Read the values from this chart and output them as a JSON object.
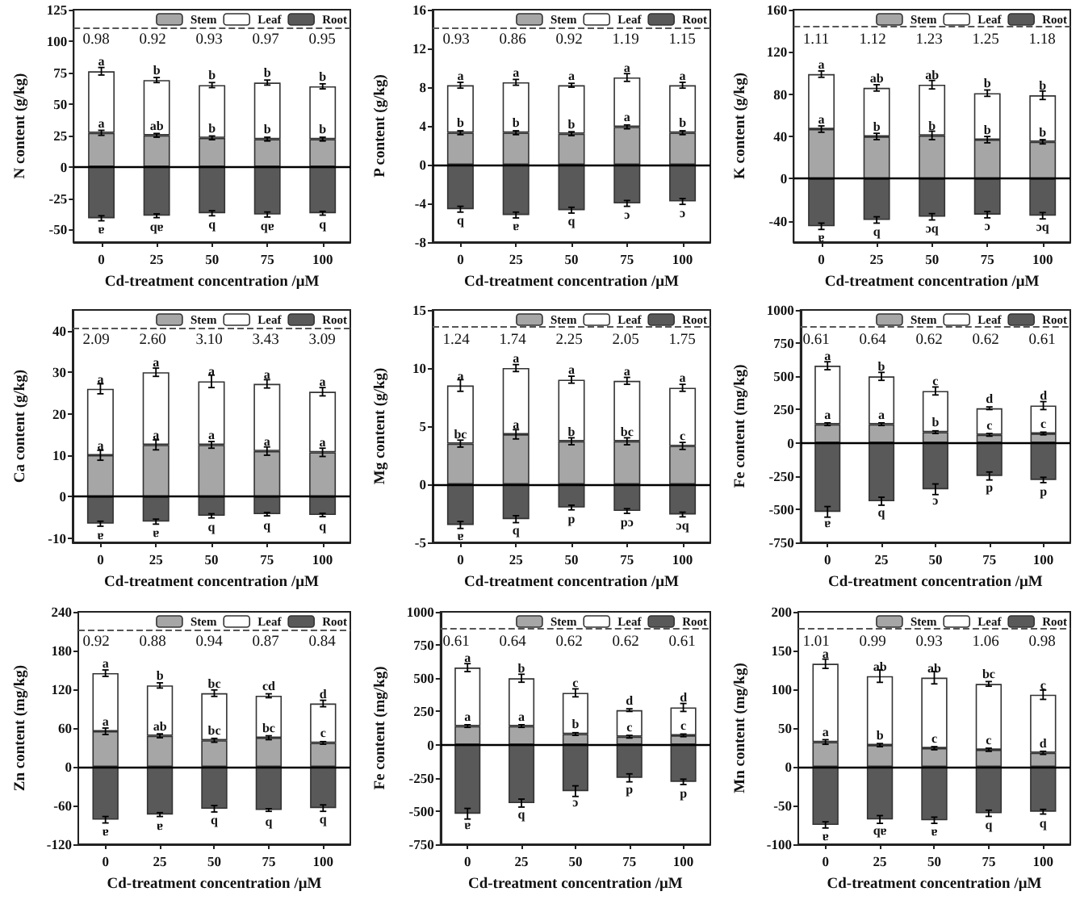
{
  "chart_data": [
    {
      "type": "bar",
      "stacked": true,
      "xlabel": "Cd-treatment concentration /μM",
      "ylabel": "N content (g/kg)",
      "categories": [
        "0",
        "25",
        "50",
        "75",
        "100"
      ],
      "ylim": [
        -60,
        125
      ],
      "yticks": [
        -50,
        -25,
        0,
        25,
        50,
        75,
        100,
        125
      ],
      "legend": "top right",
      "series": [
        {
          "name": "Stem",
          "color": "#a6a6a6",
          "values": [
            27,
            25,
            23,
            22,
            22
          ],
          "errors": [
            2,
            1.5,
            1.5,
            1.5,
            1.5
          ]
        },
        {
          "name": "Leaf",
          "color": "#ffffff",
          "values": [
            49,
            44,
            42,
            45,
            42
          ],
          "errors": [
            3,
            2,
            2,
            2,
            2
          ]
        },
        {
          "name": "Root",
          "color": "#595959",
          "values": [
            -41,
            -39,
            -37,
            -38,
            -37
          ],
          "errors": [
            2,
            1.5,
            2,
            2,
            1.5
          ]
        }
      ],
      "ref_lines": [
        {
          "axis": "y",
          "value": 111,
          "line_style": "dashed",
          "color": "#555555"
        },
        {
          "axis": "y",
          "value": 0,
          "line_style": "solid",
          "color": "#000000"
        }
      ],
      "annotations": [
        "0.98",
        "0.92",
        "0.93",
        "0.97",
        "0.95",
        {
          "text": "a",
          "x": "0",
          "y": 76
        },
        {
          "text": "b",
          "x": "25",
          "y": 69
        },
        {
          "text": "b",
          "x": "50",
          "y": 65
        },
        {
          "text": "b",
          "x": "75",
          "y": 67
        },
        {
          "text": "b",
          "x": "100",
          "y": 64
        },
        {
          "text": "a",
          "x": "0",
          "y": 27
        },
        {
          "text": "ab",
          "x": "25",
          "y": 25
        },
        {
          "text": "b",
          "x": "50",
          "y": 23
        },
        {
          "text": "b",
          "x": "75",
          "y": 22
        },
        {
          "text": "b",
          "x": "100",
          "y": 22
        },
        {
          "text": "ɐ",
          "x": "0",
          "y": -41
        },
        {
          "text": "qɐ",
          "x": "25",
          "y": -39
        },
        {
          "text": "q",
          "x": "50",
          "y": -37
        },
        {
          "text": "qɐ",
          "x": "75",
          "y": -38
        },
        {
          "text": "q",
          "x": "100",
          "y": -37
        }
      ]
    },
    {
      "type": "bar",
      "stacked": true,
      "xlabel": "Cd-treatment concentration /μM",
      "ylabel": "P content (g/kg)",
      "categories": [
        "0",
        "25",
        "50",
        "75",
        "100"
      ],
      "ylim": [
        -8,
        16
      ],
      "yticks": [
        -8,
        -4,
        0,
        4,
        8,
        12,
        16
      ],
      "legend": "top right",
      "series": [
        {
          "name": "Stem",
          "color": "#a6a6a6",
          "values": [
            3.3,
            3.3,
            3.2,
            3.9,
            3.3
          ],
          "errors": [
            0.2,
            0.2,
            0.2,
            0.2,
            0.2
          ]
        },
        {
          "name": "Leaf",
          "color": "#ffffff",
          "values": [
            4.9,
            5.2,
            5.0,
            5.1,
            4.9
          ],
          "errors": [
            0.3,
            0.3,
            0.2,
            0.4,
            0.3
          ]
        },
        {
          "name": "Root",
          "color": "#595959",
          "values": [
            -4.6,
            -5.2,
            -4.7,
            -4.0,
            -3.8
          ],
          "errors": [
            0.3,
            0.3,
            0.3,
            0.3,
            0.3
          ]
        }
      ],
      "ref_lines": [
        {
          "axis": "y",
          "value": 14.2,
          "line_style": "dashed",
          "color": "#555555"
        },
        {
          "axis": "y",
          "value": 0,
          "line_style": "solid",
          "color": "#000000"
        }
      ],
      "annotations": [
        "0.93",
        "0.86",
        "0.92",
        "1.19",
        "1.15",
        {
          "text": "a",
          "x": "0",
          "y": 8.2
        },
        {
          "text": "a",
          "x": "25",
          "y": 8.5
        },
        {
          "text": "a",
          "x": "50",
          "y": 8.2
        },
        {
          "text": "a",
          "x": "75",
          "y": 9.0
        },
        {
          "text": "a",
          "x": "100",
          "y": 8.2
        },
        {
          "text": "b",
          "x": "0",
          "y": 3.3
        },
        {
          "text": "b",
          "x": "25",
          "y": 3.3
        },
        {
          "text": "b",
          "x": "50",
          "y": 3.2
        },
        {
          "text": "a",
          "x": "75",
          "y": 3.9
        },
        {
          "text": "b",
          "x": "100",
          "y": 3.3
        },
        {
          "text": "q",
          "x": "0",
          "y": -4.6
        },
        {
          "text": "ɐ",
          "x": "25",
          "y": -5.2
        },
        {
          "text": "q",
          "x": "50",
          "y": -4.7
        },
        {
          "text": "ɔ",
          "x": "75",
          "y": -4.0
        },
        {
          "text": "ɔ",
          "x": "100",
          "y": -3.8
        }
      ]
    },
    {
      "type": "bar",
      "stacked": true,
      "xlabel": "Cd-treatment concentration /μM",
      "ylabel": "K content (g/kg)",
      "categories": [
        "0",
        "25",
        "50",
        "75",
        "100"
      ],
      "ylim": [
        -60,
        160
      ],
      "yticks": [
        -40,
        0,
        40,
        80,
        120,
        160
      ],
      "legend": "top right",
      "series": [
        {
          "name": "Stem",
          "color": "#a6a6a6",
          "values": [
            47,
            40,
            41,
            37,
            35
          ],
          "errors": [
            3,
            3,
            4,
            3,
            2
          ]
        },
        {
          "name": "Leaf",
          "color": "#ffffff",
          "values": [
            52,
            46,
            48,
            44,
            44
          ],
          "errors": [
            3,
            3,
            4,
            3,
            4
          ]
        },
        {
          "name": "Root",
          "color": "#595959",
          "values": [
            -45,
            -39,
            -36,
            -34,
            -35
          ],
          "errors": [
            3,
            3,
            3,
            3,
            3
          ]
        }
      ],
      "ref_lines": [
        {
          "axis": "y",
          "value": 145,
          "line_style": "dashed",
          "color": "#555555"
        },
        {
          "axis": "y",
          "value": 0,
          "line_style": "solid",
          "color": "#000000"
        }
      ],
      "annotations": [
        "1.11",
        "1.12",
        "1.23",
        "1.25",
        "1.18",
        {
          "text": "a",
          "x": "0",
          "y": 99
        },
        {
          "text": "ab",
          "x": "25",
          "y": 86
        },
        {
          "text": "ab",
          "x": "50",
          "y": 89
        },
        {
          "text": "b",
          "x": "75",
          "y": 81
        },
        {
          "text": "b",
          "x": "100",
          "y": 79
        },
        {
          "text": "a",
          "x": "0",
          "y": 47
        },
        {
          "text": "b",
          "x": "25",
          "y": 40
        },
        {
          "text": "b",
          "x": "50",
          "y": 41
        },
        {
          "text": "b",
          "x": "75",
          "y": 37
        },
        {
          "text": "b",
          "x": "100",
          "y": 35
        },
        {
          "text": "ɐ",
          "x": "0",
          "y": -45
        },
        {
          "text": "q",
          "x": "25",
          "y": -39
        },
        {
          "text": "ɔq",
          "x": "50",
          "y": -36
        },
        {
          "text": "ɔ",
          "x": "75",
          "y": -34
        },
        {
          "text": "ɔq",
          "x": "100",
          "y": -35
        }
      ]
    },
    {
      "type": "bar",
      "stacked": true,
      "xlabel": "Cd-treatment concentration /μM",
      "ylabel": "Ca content (g/kg)",
      "categories": [
        "0",
        "25",
        "50",
        "75",
        "100"
      ],
      "ylim": [
        -11,
        45
      ],
      "yticks": [
        -10,
        0,
        10,
        20,
        30,
        40
      ],
      "legend": "top right",
      "series": [
        {
          "name": "Stem",
          "color": "#a6a6a6",
          "values": [
            10,
            12.5,
            12.5,
            11,
            10.7
          ],
          "errors": [
            1.2,
            1.2,
            0.8,
            1,
            1
          ]
        },
        {
          "name": "Leaf",
          "color": "#ffffff",
          "values": [
            16,
            17.5,
            15.3,
            16.2,
            14.6
          ],
          "errors": [
            1.2,
            1,
            1.5,
            1,
            1
          ]
        },
        {
          "name": "Root",
          "color": "#595959",
          "values": [
            -6.5,
            -6,
            -4.6,
            -4.2,
            -4.4
          ],
          "errors": [
            0.6,
            0.6,
            0.5,
            0.4,
            0.4
          ]
        }
      ],
      "ref_lines": [
        {
          "axis": "y",
          "value": 40.5,
          "line_style": "dashed",
          "color": "#555555"
        },
        {
          "axis": "y",
          "value": 0,
          "line_style": "solid",
          "color": "#000000"
        }
      ],
      "annotations": [
        "2.09",
        "2.60",
        "3.10",
        "3.43",
        "3.09",
        {
          "text": "a",
          "x": "0",
          "y": 26
        },
        {
          "text": "a",
          "x": "25",
          "y": 30
        },
        {
          "text": "a",
          "x": "50",
          "y": 27.8
        },
        {
          "text": "a",
          "x": "75",
          "y": 27.2
        },
        {
          "text": "a",
          "x": "100",
          "y": 25.3
        },
        {
          "text": "a",
          "x": "0",
          "y": 10
        },
        {
          "text": "a",
          "x": "25",
          "y": 12.5
        },
        {
          "text": "a",
          "x": "50",
          "y": 12.5
        },
        {
          "text": "a",
          "x": "75",
          "y": 11
        },
        {
          "text": "a",
          "x": "100",
          "y": 10.7
        },
        {
          "text": "ɐ",
          "x": "0",
          "y": -6.5
        },
        {
          "text": "ɐ",
          "x": "25",
          "y": -6
        },
        {
          "text": "q",
          "x": "50",
          "y": -4.6
        },
        {
          "text": "q",
          "x": "75",
          "y": -4.2
        },
        {
          "text": "q",
          "x": "100",
          "y": -4.4
        }
      ]
    },
    {
      "type": "bar",
      "stacked": true,
      "xlabel": "Cd-treatment concentration /μM",
      "ylabel": "Mg content (g/kg)",
      "categories": [
        "0",
        "25",
        "50",
        "75",
        "100"
      ],
      "ylim": [
        -5,
        15
      ],
      "yticks": [
        -5,
        0,
        5,
        10,
        15
      ],
      "legend": "top right",
      "series": [
        {
          "name": "Stem",
          "color": "#a6a6a6",
          "values": [
            3.5,
            4.3,
            3.7,
            3.7,
            3.3
          ],
          "errors": [
            0.3,
            0.4,
            0.3,
            0.3,
            0.3
          ]
        },
        {
          "name": "Leaf",
          "color": "#ffffff",
          "values": [
            5.0,
            5.7,
            5.3,
            5.2,
            5.0
          ],
          "errors": [
            0.5,
            0.3,
            0.3,
            0.3,
            0.3
          ]
        },
        {
          "name": "Root",
          "color": "#595959",
          "values": [
            -3.5,
            -3.0,
            -2.0,
            -2.3,
            -2.6
          ],
          "errors": [
            0.3,
            0.3,
            0.2,
            0.2,
            0.2
          ]
        }
      ],
      "ref_lines": [
        {
          "axis": "y",
          "value": 13.6,
          "line_style": "dashed",
          "color": "#555555"
        },
        {
          "axis": "y",
          "value": 0,
          "line_style": "solid",
          "color": "#000000"
        }
      ],
      "annotations": [
        "1.24",
        "1.74",
        "2.25",
        "2.05",
        "1.75",
        {
          "text": "a",
          "x": "0",
          "y": 8.5
        },
        {
          "text": "a",
          "x": "25",
          "y": 10
        },
        {
          "text": "a",
          "x": "50",
          "y": 9.0
        },
        {
          "text": "a",
          "x": "75",
          "y": 8.9
        },
        {
          "text": "a",
          "x": "100",
          "y": 8.3
        },
        {
          "text": "bc",
          "x": "0",
          "y": 3.5
        },
        {
          "text": "a",
          "x": "25",
          "y": 4.3
        },
        {
          "text": "b",
          "x": "50",
          "y": 3.7
        },
        {
          "text": "bc",
          "x": "75",
          "y": 3.7
        },
        {
          "text": "c",
          "x": "100",
          "y": 3.3
        },
        {
          "text": "ɐ",
          "x": "0",
          "y": -3.5
        },
        {
          "text": "q",
          "x": "25",
          "y": -3.0
        },
        {
          "text": "p",
          "x": "50",
          "y": -2.0
        },
        {
          "text": "pɔ",
          "x": "75",
          "y": -2.3
        },
        {
          "text": "ɔq",
          "x": "100",
          "y": -2.6
        }
      ]
    },
    {
      "type": "bar",
      "stacked": true,
      "xlabel": "Cd-treatment concentration /μM",
      "ylabel": "Fe content (mg/kg)",
      "categories": [
        "0",
        "25",
        "50",
        "75",
        "100"
      ],
      "ylim": [
        -750,
        1000
      ],
      "yticks": [
        -750,
        -500,
        -250,
        0,
        250,
        500,
        750,
        1000
      ],
      "legend": "top right",
      "series": [
        {
          "name": "Stem",
          "color": "#a6a6a6",
          "values": [
            140,
            140,
            80,
            60,
            70
          ],
          "errors": [
            10,
            10,
            10,
            10,
            10
          ]
        },
        {
          "name": "Leaf",
          "color": "#ffffff",
          "values": [
            440,
            360,
            310,
            200,
            210
          ],
          "errors": [
            30,
            30,
            30,
            10,
            30
          ]
        },
        {
          "name": "Root",
          "color": "#595959",
          "values": [
            -520,
            -440,
            -350,
            -250,
            -280
          ],
          "errors": [
            40,
            30,
            40,
            30,
            20
          ]
        }
      ],
      "ref_lines": [
        {
          "axis": "y",
          "value": 875,
          "line_style": "dashed",
          "color": "#555555"
        },
        {
          "axis": "y",
          "value": 0,
          "line_style": "solid",
          "color": "#000000"
        }
      ],
      "annotations": [
        "0.61",
        "0.64",
        "0.62",
        "0.62",
        "0.61",
        {
          "text": "a",
          "x": "0",
          "y": 580
        },
        {
          "text": "b",
          "x": "25",
          "y": 500
        },
        {
          "text": "c",
          "x": "50",
          "y": 390
        },
        {
          "text": "d",
          "x": "75",
          "y": 260
        },
        {
          "text": "d",
          "x": "100",
          "y": 280
        },
        {
          "text": "a",
          "x": "0",
          "y": 140
        },
        {
          "text": "a",
          "x": "25",
          "y": 140
        },
        {
          "text": "b",
          "x": "50",
          "y": 80
        },
        {
          "text": "c",
          "x": "75",
          "y": 60
        },
        {
          "text": "c",
          "x": "100",
          "y": 70
        },
        {
          "text": "ɐ",
          "x": "0",
          "y": -520
        },
        {
          "text": "q",
          "x": "25",
          "y": -440
        },
        {
          "text": "ɔ",
          "x": "50",
          "y": -350
        },
        {
          "text": "p",
          "x": "75",
          "y": -250
        },
        {
          "text": "p",
          "x": "100",
          "y": -280
        }
      ]
    },
    {
      "type": "bar",
      "stacked": true,
      "xlabel": "Cd-treatment concentration /μM",
      "ylabel": "Zn content (mg/kg)",
      "categories": [
        "0",
        "25",
        "50",
        "75",
        "100"
      ],
      "ylim": [
        -120,
        240
      ],
      "yticks": [
        -120,
        -60,
        0,
        60,
        120,
        180,
        240
      ],
      "legend": "top right",
      "series": [
        {
          "name": "Stem",
          "color": "#a6a6a6",
          "values": [
            55,
            48,
            41,
            45,
            37
          ],
          "errors": [
            5,
            3,
            3,
            3,
            2
          ]
        },
        {
          "name": "Leaf",
          "color": "#ffffff",
          "values": [
            90,
            78,
            73,
            65,
            61
          ],
          "errors": [
            5,
            4,
            5,
            3,
            5
          ]
        },
        {
          "name": "Root",
          "color": "#595959",
          "values": [
            -82,
            -74,
            -65,
            -67,
            -64
          ],
          "errors": [
            5,
            3,
            5,
            2,
            5
          ]
        }
      ],
      "ref_lines": [
        {
          "axis": "y",
          "value": 212,
          "line_style": "dashed",
          "color": "#555555"
        },
        {
          "axis": "y",
          "value": 0,
          "line_style": "solid",
          "color": "#000000"
        }
      ],
      "annotations": [
        "0.92",
        "0.88",
        "0.94",
        "0.87",
        "0.84",
        {
          "text": "a",
          "x": "0",
          "y": 145
        },
        {
          "text": "b",
          "x": "25",
          "y": 126
        },
        {
          "text": "bc",
          "x": "50",
          "y": 114
        },
        {
          "text": "cd",
          "x": "75",
          "y": 110
        },
        {
          "text": "d",
          "x": "100",
          "y": 98
        },
        {
          "text": "a",
          "x": "0",
          "y": 55
        },
        {
          "text": "ab",
          "x": "25",
          "y": 48
        },
        {
          "text": "bc",
          "x": "50",
          "y": 41
        },
        {
          "text": "bc",
          "x": "75",
          "y": 45
        },
        {
          "text": "c",
          "x": "100",
          "y": 37
        },
        {
          "text": "ɐ",
          "x": "0",
          "y": -82
        },
        {
          "text": "ɐ",
          "x": "25",
          "y": -74
        },
        {
          "text": "q",
          "x": "50",
          "y": -65
        },
        {
          "text": "q",
          "x": "75",
          "y": -67
        },
        {
          "text": "q",
          "x": "100",
          "y": -64
        }
      ]
    },
    {
      "type": "bar",
      "stacked": true,
      "xlabel": "Cd-treatment concentration /μM",
      "ylabel": "Fe content (mg/kg)",
      "categories": [
        "0",
        "25",
        "50",
        "75",
        "100"
      ],
      "ylim": [
        -750,
        1000
      ],
      "yticks": [
        -750,
        -500,
        -250,
        0,
        250,
        500,
        750,
        1000
      ],
      "legend": "top right",
      "series": [
        {
          "name": "Stem",
          "color": "#a6a6a6",
          "values": [
            140,
            140,
            80,
            60,
            70
          ],
          "errors": [
            10,
            10,
            10,
            10,
            10
          ]
        },
        {
          "name": "Leaf",
          "color": "#ffffff",
          "values": [
            440,
            360,
            310,
            200,
            210
          ],
          "errors": [
            30,
            30,
            30,
            10,
            30
          ]
        },
        {
          "name": "Root",
          "color": "#595959",
          "values": [
            -520,
            -440,
            -350,
            -250,
            -280
          ],
          "errors": [
            40,
            30,
            40,
            30,
            20
          ]
        }
      ],
      "ref_lines": [
        {
          "axis": "y",
          "value": 875,
          "line_style": "dashed",
          "color": "#555555"
        },
        {
          "axis": "y",
          "value": 0,
          "line_style": "solid",
          "color": "#000000"
        }
      ],
      "annotations": [
        "0.61",
        "0.64",
        "0.62",
        "0.62",
        "0.61",
        {
          "text": "a",
          "x": "0",
          "y": 580
        },
        {
          "text": "b",
          "x": "25",
          "y": 500
        },
        {
          "text": "c",
          "x": "50",
          "y": 390
        },
        {
          "text": "d",
          "x": "75",
          "y": 260
        },
        {
          "text": "d",
          "x": "100",
          "y": 280
        },
        {
          "text": "a",
          "x": "0",
          "y": 140
        },
        {
          "text": "a",
          "x": "25",
          "y": 140
        },
        {
          "text": "b",
          "x": "50",
          "y": 80
        },
        {
          "text": "c",
          "x": "75",
          "y": 60
        },
        {
          "text": "c",
          "x": "100",
          "y": 70
        },
        {
          "text": "ɐ",
          "x": "0",
          "y": -520
        },
        {
          "text": "q",
          "x": "25",
          "y": -440
        },
        {
          "text": "ɔ",
          "x": "50",
          "y": -350
        },
        {
          "text": "p",
          "x": "75",
          "y": -250
        },
        {
          "text": "p",
          "x": "100",
          "y": -280
        }
      ]
    },
    {
      "type": "bar",
      "stacked": true,
      "xlabel": "Cd-treatment concentration /μM",
      "ylabel": "Mn content (mg/kg)",
      "categories": [
        "0",
        "25",
        "50",
        "75",
        "100"
      ],
      "ylim": [
        -100,
        200
      ],
      "yticks": [
        -100,
        -50,
        0,
        50,
        100,
        150,
        200
      ],
      "legend": "top right",
      "series": [
        {
          "name": "Stem",
          "color": "#a6a6a6",
          "values": [
            32,
            28,
            24,
            22,
            18
          ],
          "errors": [
            3,
            2,
            2,
            2,
            2
          ]
        },
        {
          "name": "Leaf",
          "color": "#ffffff",
          "values": [
            101,
            89,
            91,
            85,
            75
          ],
          "errors": [
            6,
            8,
            8,
            3,
            6
          ]
        },
        {
          "name": "Root",
          "color": "#595959",
          "values": [
            -75,
            -68,
            -69,
            -60,
            -58
          ],
          "errors": [
            4,
            5,
            4,
            4,
            3
          ]
        }
      ],
      "ref_lines": [
        {
          "axis": "y",
          "value": 178,
          "line_style": "dashed",
          "color": "#555555"
        },
        {
          "axis": "y",
          "value": 0,
          "line_style": "solid",
          "color": "#000000"
        }
      ],
      "annotations": [
        "1.01",
        "0.99",
        "0.93",
        "1.06",
        "0.98",
        {
          "text": "a",
          "x": "0",
          "y": 133
        },
        {
          "text": "ab",
          "x": "25",
          "y": 117
        },
        {
          "text": "ab",
          "x": "50",
          "y": 115
        },
        {
          "text": "bc",
          "x": "75",
          "y": 107
        },
        {
          "text": "c",
          "x": "100",
          "y": 93
        },
        {
          "text": "a",
          "x": "0",
          "y": 32
        },
        {
          "text": "b",
          "x": "25",
          "y": 28
        },
        {
          "text": "c",
          "x": "50",
          "y": 24
        },
        {
          "text": "c",
          "x": "75",
          "y": 22
        },
        {
          "text": "d",
          "x": "100",
          "y": 18
        },
        {
          "text": "ɐ",
          "x": "0",
          "y": -75
        },
        {
          "text": "qɐ",
          "x": "25",
          "y": -68
        },
        {
          "text": "ɐ",
          "x": "50",
          "y": -69
        },
        {
          "text": "q",
          "x": "75",
          "y": -60
        },
        {
          "text": "q",
          "x": "100",
          "y": -58
        }
      ]
    }
  ]
}
